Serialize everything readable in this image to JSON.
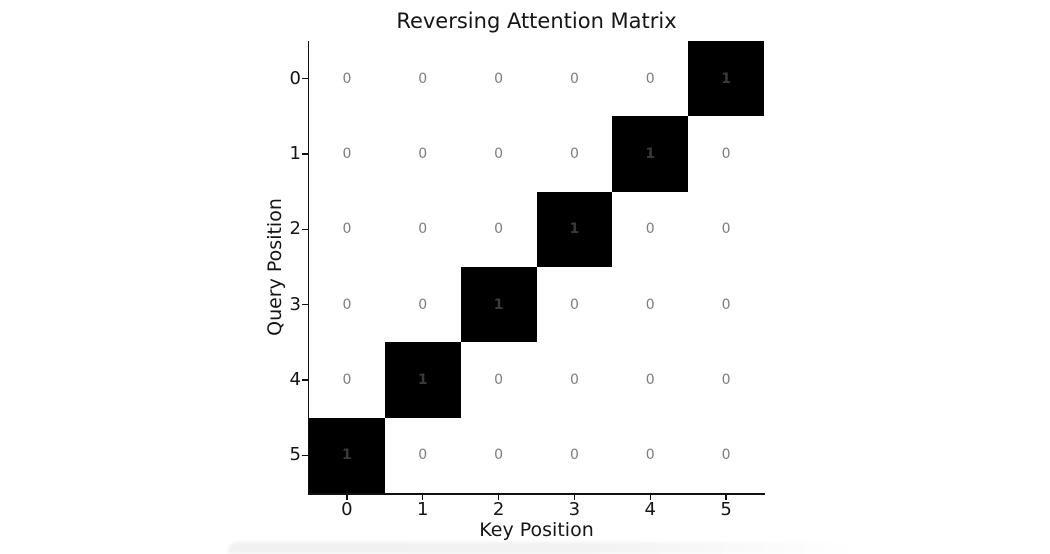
{
  "chart_data": {
    "type": "heatmap",
    "title": "Reversing Attention Matrix",
    "xlabel": "Key Position",
    "ylabel": "Query Position",
    "x_tick_labels": [
      "0",
      "1",
      "2",
      "3",
      "4",
      "5"
    ],
    "y_tick_labels": [
      "0",
      "1",
      "2",
      "3",
      "4",
      "5"
    ],
    "matrix": [
      [
        0,
        0,
        0,
        0,
        0,
        1
      ],
      [
        0,
        0,
        0,
        0,
        1,
        0
      ],
      [
        0,
        0,
        0,
        1,
        0,
        0
      ],
      [
        0,
        0,
        1,
        0,
        0,
        0
      ],
      [
        0,
        1,
        0,
        0,
        0,
        0
      ],
      [
        1,
        0,
        0,
        0,
        0,
        0
      ]
    ],
    "value_range": [
      0,
      1
    ],
    "colors": {
      "cell_on": "#000000",
      "cell_off": "#ffffff",
      "value_text_on": "#3a3a3a",
      "value_text_off": "#7d7d7d",
      "axis": "#111111"
    },
    "legend": "none",
    "grid": false
  }
}
